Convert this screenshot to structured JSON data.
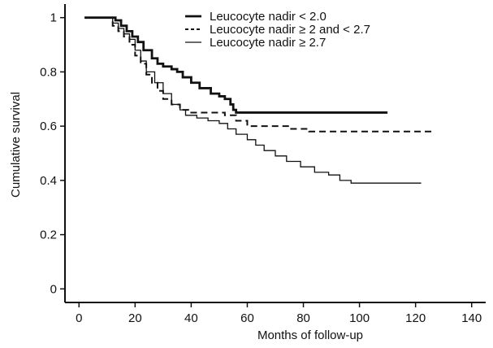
{
  "chart_data": {
    "type": "line",
    "title": "",
    "xlabel": "Months of follow-up",
    "ylabel": "Cumulative survival",
    "xlim": [
      -5,
      145
    ],
    "ylim": [
      -0.05,
      1.05
    ],
    "x_ticks": [
      0,
      20,
      40,
      60,
      80,
      100,
      120,
      140
    ],
    "y_ticks": [
      0,
      0.2,
      0.4,
      0.6,
      0.8,
      1
    ],
    "x_tick_labels": [
      "0",
      "20",
      "40",
      "60",
      "80",
      "100",
      "120",
      "140"
    ],
    "y_tick_labels": [
      "0",
      "0.2",
      "0.4",
      "0.6",
      "0.8",
      "1"
    ],
    "grid": false,
    "legend_position": "top-right",
    "step": true,
    "series": [
      {
        "name": "Leucocyte nadir < 2.0",
        "style": "thick-solid",
        "color": "#111111",
        "points": [
          [
            2,
            1.0
          ],
          [
            12,
            1.0
          ],
          [
            13,
            0.99
          ],
          [
            15,
            0.97
          ],
          [
            17,
            0.95
          ],
          [
            19,
            0.93
          ],
          [
            21,
            0.91
          ],
          [
            23,
            0.88
          ],
          [
            26,
            0.85
          ],
          [
            28,
            0.83
          ],
          [
            30,
            0.82
          ],
          [
            33,
            0.81
          ],
          [
            35,
            0.8
          ],
          [
            37,
            0.78
          ],
          [
            40,
            0.76
          ],
          [
            43,
            0.74
          ],
          [
            47,
            0.72
          ],
          [
            50,
            0.71
          ],
          [
            52,
            0.7
          ],
          [
            54,
            0.68
          ],
          [
            55,
            0.66
          ],
          [
            56,
            0.65
          ],
          [
            110,
            0.65
          ]
        ]
      },
      {
        "name": "Leucocyte nadir ≥ 2 and < 2.7",
        "style": "dashed",
        "color": "#111111",
        "points": [
          [
            2,
            1.0
          ],
          [
            10,
            1.0
          ],
          [
            12,
            0.97
          ],
          [
            14,
            0.95
          ],
          [
            16,
            0.93
          ],
          [
            18,
            0.9
          ],
          [
            20,
            0.86
          ],
          [
            22,
            0.83
          ],
          [
            24,
            0.79
          ],
          [
            26,
            0.76
          ],
          [
            28,
            0.73
          ],
          [
            30,
            0.7
          ],
          [
            33,
            0.68
          ],
          [
            36,
            0.66
          ],
          [
            40,
            0.65
          ],
          [
            45,
            0.65
          ],
          [
            52,
            0.64
          ],
          [
            56,
            0.62
          ],
          [
            60,
            0.6
          ],
          [
            70,
            0.6
          ],
          [
            75,
            0.59
          ],
          [
            82,
            0.58
          ],
          [
            127,
            0.58
          ]
        ]
      },
      {
        "name": "Leucocyte nadir ≥ 2.7",
        "style": "thin-solid",
        "color": "#111111",
        "points": [
          [
            2,
            1.0
          ],
          [
            10,
            1.0
          ],
          [
            12,
            0.98
          ],
          [
            14,
            0.96
          ],
          [
            16,
            0.94
          ],
          [
            18,
            0.92
          ],
          [
            20,
            0.88
          ],
          [
            22,
            0.84
          ],
          [
            24,
            0.8
          ],
          [
            27,
            0.76
          ],
          [
            30,
            0.72
          ],
          [
            33,
            0.68
          ],
          [
            36,
            0.66
          ],
          [
            38,
            0.64
          ],
          [
            42,
            0.63
          ],
          [
            46,
            0.62
          ],
          [
            50,
            0.61
          ],
          [
            53,
            0.59
          ],
          [
            56,
            0.57
          ],
          [
            60,
            0.55
          ],
          [
            63,
            0.53
          ],
          [
            66,
            0.51
          ],
          [
            70,
            0.49
          ],
          [
            74,
            0.47
          ],
          [
            79,
            0.45
          ],
          [
            84,
            0.43
          ],
          [
            89,
            0.42
          ],
          [
            93,
            0.4
          ],
          [
            97,
            0.39
          ],
          [
            100,
            0.39
          ],
          [
            122,
            0.39
          ]
        ]
      }
    ]
  }
}
